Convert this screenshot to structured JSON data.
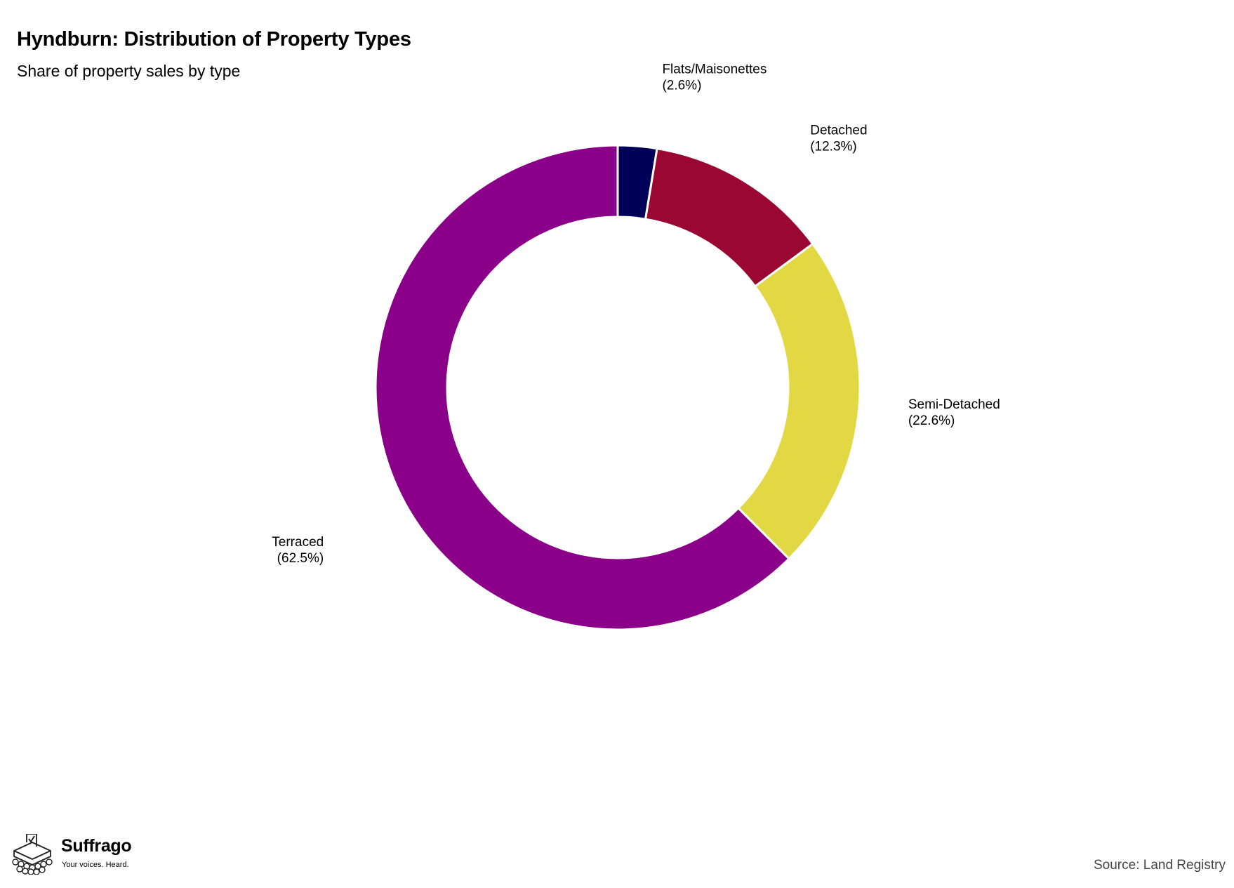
{
  "header": {
    "title": "Hyndburn: Distribution of Property Types",
    "subtitle": "Share of property sales by type"
  },
  "footer": {
    "source": "Source: Land Registry",
    "logo_name": "Suffrago",
    "logo_tagline": "Your voices. Heard."
  },
  "chart_data": {
    "type": "pie",
    "variant": "donut",
    "title": "Hyndburn: Distribution of Property Types",
    "subtitle": "Share of property sales by type",
    "unit": "%",
    "slices": [
      {
        "name": "Flats/Maisonettes",
        "value": 2.6,
        "label": "(2.6%)",
        "color": "#000058"
      },
      {
        "name": "Detached",
        "value": 12.3,
        "label": "(12.3%)",
        "color": "#9A0732"
      },
      {
        "name": "Semi-Detached",
        "value": 22.6,
        "label": "(22.6%)",
        "color": "#E2D843"
      },
      {
        "name": "Terraced",
        "value": 62.5,
        "label": "(62.5%)",
        "color": "#8A0088"
      }
    ],
    "start_angle": "12 o'clock",
    "direction": "clockwise",
    "legend": "none (direct labels)"
  }
}
